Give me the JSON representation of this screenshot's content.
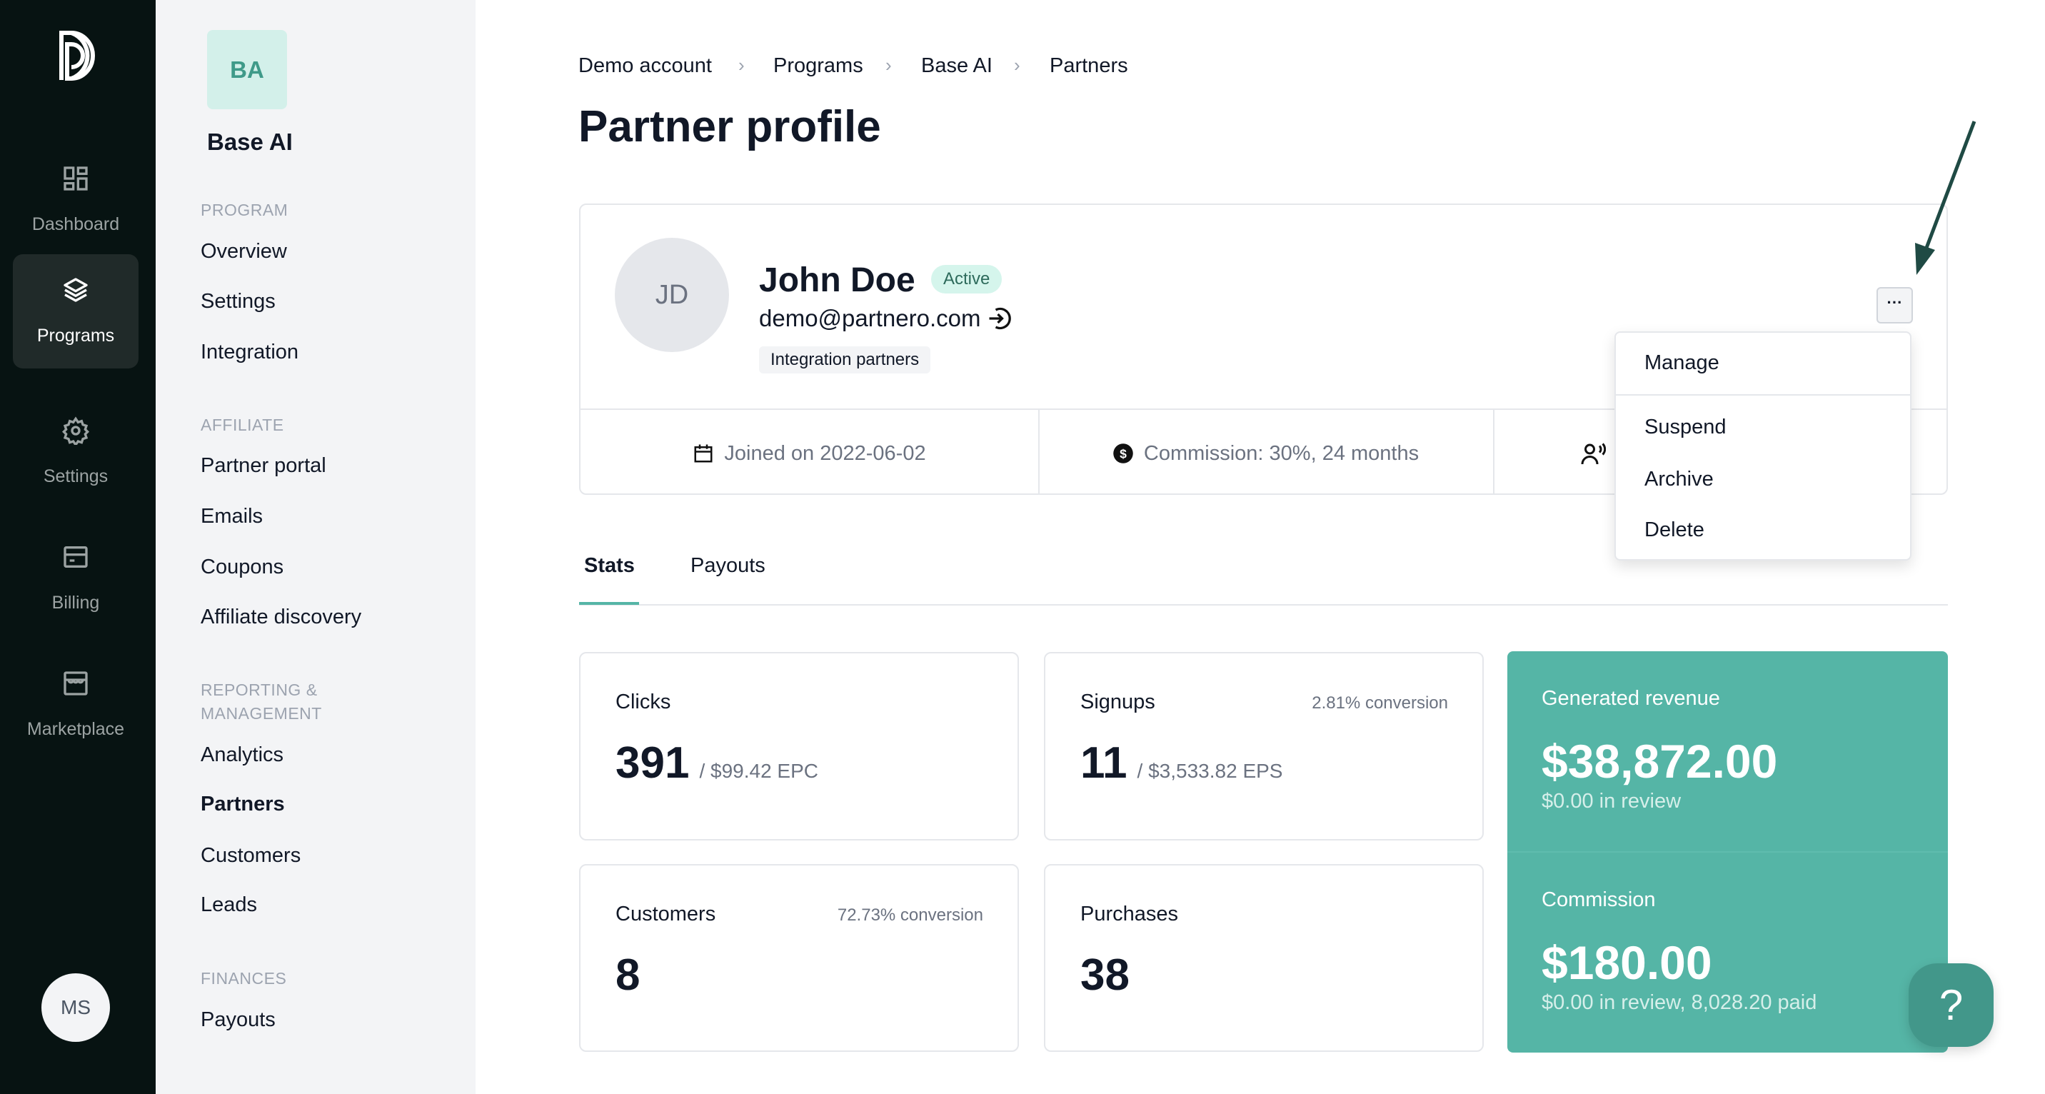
{
  "rail": {
    "items": [
      {
        "label": "Dashboard",
        "icon": "dashboard-icon"
      },
      {
        "label": "Programs",
        "icon": "layers-icon",
        "active": true
      },
      {
        "label": "Settings",
        "icon": "gear-icon"
      },
      {
        "label": "Billing",
        "icon": "billing-icon"
      },
      {
        "label": "Marketplace",
        "icon": "store-icon"
      }
    ],
    "user_initials": "MS"
  },
  "sidebar": {
    "program_initials": "BA",
    "program_name": "Base AI",
    "sections": [
      {
        "title": "PROGRAM",
        "items": [
          "Overview",
          "Settings",
          "Integration"
        ]
      },
      {
        "title": "AFFILIATE",
        "items": [
          "Partner portal",
          "Emails",
          "Coupons",
          "Affiliate discovery"
        ]
      },
      {
        "title_line1": "REPORTING &",
        "title_line2": "MANAGEMENT",
        "items": [
          "Analytics",
          "Partners",
          "Customers",
          "Leads"
        ],
        "active": "Partners"
      },
      {
        "title": "FINANCES",
        "items": [
          "Payouts"
        ]
      }
    ]
  },
  "breadcrumb": [
    "Demo account",
    "Programs",
    "Base AI",
    "Partners"
  ],
  "page_title": "Partner profile",
  "partner": {
    "initials": "JD",
    "name": "John Doe",
    "status": "Active",
    "email": "demo@partnero.com",
    "tag": "Integration partners",
    "joined": "Joined on 2022-06-02",
    "commission": "Commission: 30%, 24 months"
  },
  "more_menu": {
    "button_label": "···",
    "items": [
      "Manage",
      "Suspend",
      "Archive",
      "Delete"
    ]
  },
  "tabs": [
    {
      "label": "Stats",
      "active": true
    },
    {
      "label": "Payouts"
    }
  ],
  "stats": {
    "clicks": {
      "label": "Clicks",
      "value": "391",
      "sub": "/ $99.42 EPC"
    },
    "signups": {
      "label": "Signups",
      "conversion": "2.81% conversion",
      "value": "11",
      "sub": "/ $3,533.82 EPS"
    },
    "customers": {
      "label": "Customers",
      "conversion": "72.73% conversion",
      "value": "8"
    },
    "purchases": {
      "label": "Purchases",
      "value": "38"
    },
    "revenue": {
      "label": "Generated revenue",
      "value": "$38,872.00",
      "sub": "$0.00 in review"
    },
    "commission": {
      "label": "Commission",
      "value": "$180.00",
      "sub": "$0.00 in review, 8,028.20 paid"
    }
  },
  "help_label": "?",
  "colors": {
    "accent": "#55b5a6",
    "rail_bg": "#071312",
    "help_bg": "#42978a",
    "badge_bg": "#d5f5ec",
    "arrow": "#1f4a44"
  }
}
